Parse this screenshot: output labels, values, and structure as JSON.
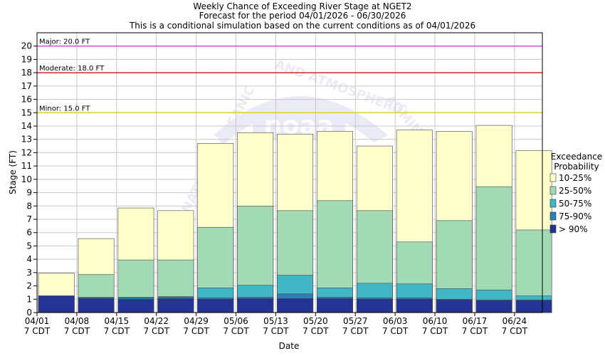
{
  "colors": {
    "p10_25": "#ffffcc",
    "p25_50": "#a1dab4",
    "p50_75": "#41b6c4",
    "p75_90": "#2c7fb8",
    "p90": "#253494",
    "major": "#cc33cc",
    "moderate": "#cc0000",
    "minor": "#e6cc00",
    "grid": "#c8c8c8",
    "watermark": "#d9dcef"
  },
  "chart_data": {
    "type": "bar",
    "title_lines": [
      "Weekly Chance of Exceeding River Stage at NGET2",
      "Forecast for the period 04/01/2026 - 06/30/2026",
      "This is a conditional simulation based on the current conditions as of 04/01/2026"
    ],
    "xlabel": "Date",
    "ylabel": "Stage (FT)",
    "ylim": [
      0,
      21
    ],
    "yticks": [
      0,
      1,
      2,
      3,
      4,
      5,
      6,
      7,
      8,
      9,
      10,
      11,
      12,
      13,
      14,
      15,
      16,
      17,
      18,
      19,
      20
    ],
    "x_tick_dates": [
      "04/01",
      "04/08",
      "04/15",
      "04/22",
      "04/29",
      "05/06",
      "05/13",
      "05/20",
      "05/27",
      "06/03",
      "06/10",
      "06/17",
      "06/24"
    ],
    "x_tick_time": "7 CDT",
    "grid": true,
    "legend": {
      "title_lines": [
        "Exceedance",
        "Probability"
      ],
      "position": "right",
      "entries": [
        {
          "label": "10-25%",
          "color_key": "p10_25"
        },
        {
          "label": "25-50%",
          "color_key": "p25_50"
        },
        {
          "label": "50-75%",
          "color_key": "p50_75"
        },
        {
          "label": "75-90%",
          "color_key": "p75_90"
        },
        {
          "label": "> 90%",
          "color_key": "p90"
        }
      ]
    },
    "flood_stages": [
      {
        "label": "Major: 20.0 FT",
        "value": 20.0,
        "color_key": "major"
      },
      {
        "label": "Moderate: 18.0 FT",
        "value": 18.0,
        "color_key": "moderate"
      },
      {
        "label": "Minor: 15.0 FT",
        "value": 15.0,
        "color_key": "minor"
      }
    ],
    "series": [
      {
        "name": "10-25%",
        "color_key": "p10_25",
        "values": [
          2.95,
          5.55,
          7.85,
          7.65,
          12.7,
          13.5,
          13.4,
          13.6,
          12.5,
          13.7,
          13.6,
          14.05,
          12.15
        ]
      },
      {
        "name": "25-50%",
        "color_key": "p25_50",
        "values": [
          1.25,
          2.85,
          3.95,
          3.95,
          6.4,
          8.0,
          7.65,
          8.4,
          7.65,
          5.3,
          6.9,
          9.45,
          6.2
        ]
      },
      {
        "name": "50-75%",
        "color_key": "p50_75",
        "values": [
          1.25,
          1.15,
          1.15,
          1.2,
          1.85,
          2.05,
          2.8,
          1.85,
          2.2,
          2.15,
          1.8,
          1.7,
          1.25
        ]
      },
      {
        "name": "75-90%",
        "color_key": "p75_90",
        "values": [
          1.25,
          1.1,
          1.1,
          1.15,
          1.1,
          1.15,
          1.4,
          1.15,
          1.1,
          1.1,
          1.0,
          0.95,
          0.95
        ]
      },
      {
        "name": "> 90%",
        "color_key": "p90",
        "values": [
          1.25,
          1.05,
          1.0,
          1.05,
          1.0,
          1.05,
          1.05,
          1.05,
          1.0,
          1.0,
          0.95,
          0.9,
          0.9
        ]
      }
    ]
  }
}
